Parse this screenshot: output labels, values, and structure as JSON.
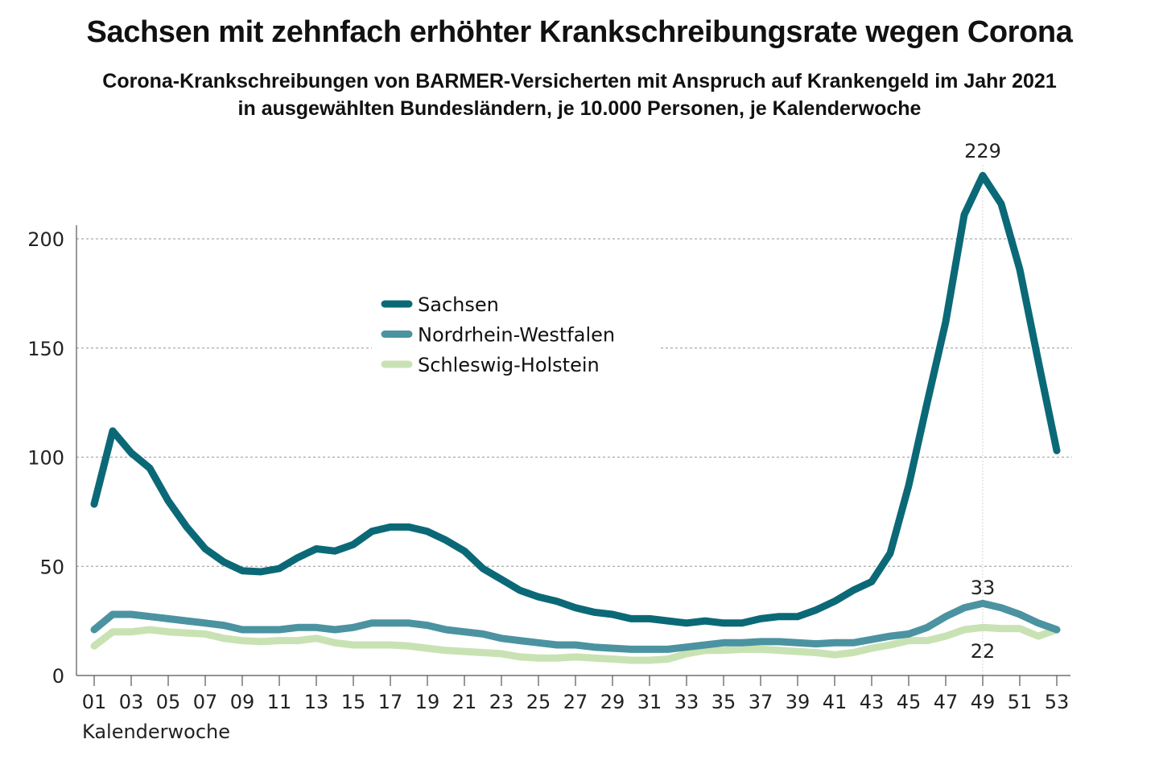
{
  "chart_data": {
    "type": "line",
    "title": "Sachsen mit zehnfach erhöhter Krankschreibungsrate wegen Corona",
    "subtitle_lines": [
      "Corona-Krankschreibungen von BARMER-Versicherten mit Anspruch auf Krankengeld im Jahr 2021",
      "in ausgewählten Bundesländern, je 10.000 Personen, je Kalenderwoche"
    ],
    "xlabel": "Kalenderwoche",
    "ylabel": "",
    "x": [
      1,
      2,
      3,
      4,
      5,
      6,
      7,
      8,
      9,
      10,
      11,
      12,
      13,
      14,
      15,
      16,
      17,
      18,
      19,
      20,
      21,
      22,
      23,
      24,
      25,
      26,
      27,
      28,
      29,
      30,
      31,
      32,
      33,
      34,
      35,
      36,
      37,
      38,
      39,
      40,
      41,
      42,
      43,
      44,
      45,
      46,
      47,
      48,
      49,
      50,
      51,
      52,
      53
    ],
    "x_tick_labels": [
      "01",
      "03",
      "05",
      "07",
      "09",
      "11",
      "13",
      "15",
      "17",
      "19",
      "21",
      "23",
      "25",
      "27",
      "29",
      "31",
      "33",
      "35",
      "37",
      "39",
      "41",
      "43",
      "45",
      "47",
      "49",
      "51",
      "53"
    ],
    "y_ticks": [
      0,
      50,
      100,
      150,
      200
    ],
    "ylim": [
      0,
      229
    ],
    "grid": "horizontal dotted",
    "legend_position": "upper-center",
    "series": [
      {
        "name": "Sachsen",
        "color": "#0b6977",
        "values": [
          78.5,
          112,
          102,
          95,
          80,
          68,
          58,
          52,
          48,
          47.5,
          49,
          54,
          58,
          57,
          60,
          66,
          68,
          68,
          66,
          62,
          57,
          49,
          44,
          39,
          36,
          34,
          31,
          29,
          28,
          26,
          26,
          25,
          24,
          25,
          24,
          24,
          26,
          27,
          27,
          30,
          34,
          39,
          43,
          56,
          87,
          125,
          162,
          211,
          229,
          216,
          186,
          144,
          103
        ]
      },
      {
        "name": "Nordrhein-Westfalen",
        "color": "#4b93a1",
        "values": [
          21,
          28,
          28,
          27,
          26,
          25,
          24,
          23,
          21,
          21,
          21,
          22,
          22,
          21,
          22,
          24,
          24,
          24,
          23,
          21,
          20,
          19,
          17,
          16,
          15,
          14,
          14,
          13,
          12.5,
          12,
          12,
          12,
          13,
          14,
          15,
          15,
          15.5,
          15.5,
          15,
          14.5,
          15,
          15,
          16.5,
          18,
          19,
          22,
          27,
          31,
          33,
          31,
          28,
          24,
          21
        ]
      },
      {
        "name": "Schleswig-Holstein",
        "color": "#c9e2b3",
        "values": [
          13.5,
          20,
          20,
          21,
          20,
          19.5,
          19,
          17,
          16,
          15.5,
          16,
          16,
          17,
          15,
          14,
          14,
          14,
          13.5,
          12.5,
          11.5,
          11,
          10.5,
          10,
          8.5,
          8,
          8,
          8.5,
          8,
          7.5,
          7,
          7,
          7.5,
          10,
          11.5,
          11.5,
          12,
          12,
          11.5,
          11,
          10.5,
          9.5,
          10.5,
          12.5,
          14,
          16,
          16,
          18,
          21,
          22,
          21.5,
          21.5,
          18,
          21
        ]
      }
    ],
    "annotations": [
      {
        "text": "229",
        "x": 49,
        "series": "Sachsen"
      },
      {
        "text": "33",
        "x": 49,
        "series": "Nordrhein-Westfalen"
      },
      {
        "text": "22",
        "x": 49,
        "series": "Schleswig-Holstein"
      }
    ],
    "highlight_x": 49
  }
}
